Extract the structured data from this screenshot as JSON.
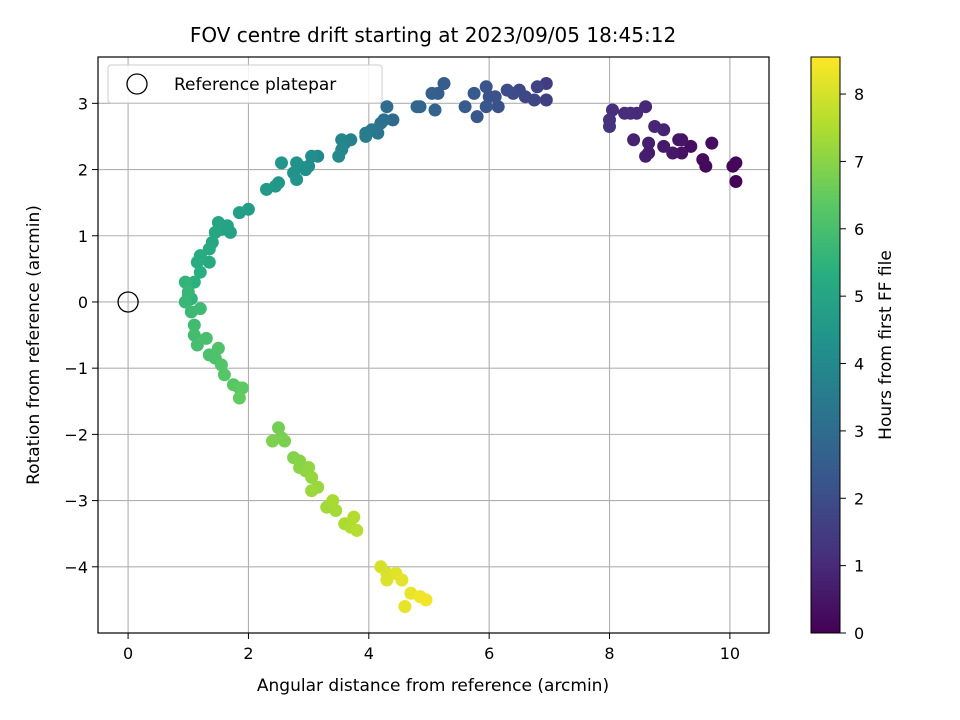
{
  "chart_data": {
    "type": "scatter",
    "title": "FOV centre drift starting at 2023/09/05 18:45:12",
    "xlabel": "Angular distance from reference (arcmin)",
    "ylabel": "Rotation from reference (arcmin)",
    "colorbar_label": "Hours from first FF file",
    "xlim": [
      -0.5,
      10.65
    ],
    "ylim": [
      -5.0,
      3.7
    ],
    "x_ticks": [
      0,
      2,
      4,
      6,
      8,
      10
    ],
    "y_ticks": [
      -4,
      -3,
      -2,
      -1,
      0,
      1,
      2,
      3
    ],
    "colorbar_range": [
      0,
      8.55
    ],
    "colorbar_ticks": [
      0,
      1,
      2,
      3,
      4,
      5,
      6,
      7,
      8
    ],
    "colormap": "viridis",
    "grid": true,
    "legend": {
      "placement": "top-left",
      "entries": [
        "Reference platepar"
      ]
    },
    "reference_point": {
      "x": 0,
      "y": 0
    },
    "points": [
      [
        10.1,
        1.82,
        0.05
      ],
      [
        10.05,
        2.05,
        0.1
      ],
      [
        10.1,
        2.1,
        0.15
      ],
      [
        9.6,
        2.05,
        0.2
      ],
      [
        9.55,
        2.15,
        0.25
      ],
      [
        9.7,
        2.4,
        0.3
      ],
      [
        9.35,
        2.35,
        0.35
      ],
      [
        9.2,
        2.25,
        0.4
      ],
      [
        9.15,
        2.45,
        0.45
      ],
      [
        9.2,
        2.45,
        0.5
      ],
      [
        9.05,
        2.25,
        0.55
      ],
      [
        8.9,
        2.35,
        0.6
      ],
      [
        8.65,
        2.25,
        0.65
      ],
      [
        8.6,
        2.2,
        0.7
      ],
      [
        8.65,
        2.4,
        0.75
      ],
      [
        8.4,
        2.45,
        0.8
      ],
      [
        8.9,
        2.6,
        0.85
      ],
      [
        8.75,
        2.65,
        0.9
      ],
      [
        8.6,
        2.95,
        0.95
      ],
      [
        8.45,
        2.85,
        1.0
      ],
      [
        8.35,
        2.85,
        1.05
      ],
      [
        8.25,
        2.85,
        1.1
      ],
      [
        8.05,
        2.9,
        1.15
      ],
      [
        8.0,
        2.75,
        1.2
      ],
      [
        8.0,
        2.65,
        1.25
      ],
      [
        6.95,
        3.3,
        1.5
      ],
      [
        6.95,
        3.05,
        1.6
      ],
      [
        6.8,
        3.25,
        1.7
      ],
      [
        6.75,
        3.05,
        1.75
      ],
      [
        6.6,
        3.1,
        1.8
      ],
      [
        6.5,
        3.2,
        1.85
      ],
      [
        6.4,
        3.15,
        1.95
      ],
      [
        6.3,
        3.2,
        2.0
      ],
      [
        6.15,
        2.95,
        2.1
      ],
      [
        6.1,
        3.1,
        2.15
      ],
      [
        6.0,
        3.1,
        2.2
      ],
      [
        5.95,
        3.25,
        2.25
      ],
      [
        5.95,
        2.95,
        2.3
      ],
      [
        5.8,
        2.8,
        2.35
      ],
      [
        5.75,
        3.15,
        2.4
      ],
      [
        5.6,
        2.95,
        2.45
      ],
      [
        5.25,
        3.3,
        2.5
      ],
      [
        5.15,
        3.15,
        2.55
      ],
      [
        5.05,
        3.15,
        2.6
      ],
      [
        5.1,
        2.9,
        2.7
      ],
      [
        4.85,
        2.95,
        2.75
      ],
      [
        4.8,
        2.95,
        2.8
      ],
      [
        4.4,
        2.75,
        2.9
      ],
      [
        4.3,
        2.95,
        3.0
      ],
      [
        4.25,
        2.75,
        3.1
      ],
      [
        4.2,
        2.7,
        3.2
      ],
      [
        4.15,
        2.55,
        3.3
      ],
      [
        4.05,
        2.6,
        3.4
      ],
      [
        3.95,
        2.55,
        3.5
      ],
      [
        3.95,
        2.5,
        3.6
      ],
      [
        3.7,
        2.45,
        3.7
      ],
      [
        3.6,
        2.4,
        3.8
      ],
      [
        3.55,
        2.45,
        3.85
      ],
      [
        3.55,
        2.3,
        3.9
      ],
      [
        3.5,
        2.2,
        4.0
      ],
      [
        3.15,
        2.2,
        4.05
      ],
      [
        3.0,
        2.05,
        4.1
      ],
      [
        3.05,
        2.2,
        4.15
      ],
      [
        2.95,
        2.0,
        4.2
      ],
      [
        2.85,
        2.05,
        4.25
      ],
      [
        2.8,
        2.1,
        4.3
      ],
      [
        2.75,
        1.95,
        4.35
      ],
      [
        2.8,
        1.85,
        4.4
      ],
      [
        2.55,
        2.1,
        4.45
      ],
      [
        2.5,
        1.8,
        4.5
      ],
      [
        2.45,
        1.75,
        4.55
      ],
      [
        2.3,
        1.7,
        4.6
      ],
      [
        2.0,
        1.4,
        4.7
      ],
      [
        1.85,
        1.35,
        4.75
      ],
      [
        1.55,
        1.1,
        4.85
      ],
      [
        1.7,
        1.05,
        4.9
      ],
      [
        1.65,
        1.15,
        4.95
      ],
      [
        1.5,
        1.2,
        5.0
      ],
      [
        1.45,
        1.05,
        5.05
      ],
      [
        1.4,
        0.9,
        5.1
      ],
      [
        1.35,
        0.8,
        5.15
      ],
      [
        1.35,
        0.6,
        5.2
      ],
      [
        1.2,
        0.7,
        5.25
      ],
      [
        1.15,
        0.6,
        5.3
      ],
      [
        1.2,
        0.45,
        5.35
      ],
      [
        1.1,
        0.3,
        5.4
      ],
      [
        1.05,
        0.05,
        5.5
      ],
      [
        1.0,
        0.1,
        5.55
      ],
      [
        0.95,
        0.3,
        5.6
      ],
      [
        1.0,
        0.15,
        5.65
      ],
      [
        0.95,
        0.0,
        5.7
      ],
      [
        1.05,
        -0.15,
        5.75
      ],
      [
        1.2,
        -0.1,
        5.8
      ],
      [
        1.1,
        -0.35,
        5.85
      ],
      [
        1.1,
        -0.5,
        5.9
      ],
      [
        1.15,
        -0.65,
        5.95
      ],
      [
        1.3,
        -0.55,
        6.0
      ],
      [
        1.35,
        -0.8,
        6.05
      ],
      [
        1.45,
        -0.85,
        6.1
      ],
      [
        1.5,
        -0.7,
        6.15
      ],
      [
        1.55,
        -0.95,
        6.2
      ],
      [
        1.6,
        -1.1,
        6.25
      ],
      [
        1.75,
        -1.25,
        6.3
      ],
      [
        1.85,
        -1.3,
        6.35
      ],
      [
        1.9,
        -1.3,
        6.4
      ],
      [
        1.85,
        -1.45,
        6.45
      ],
      [
        2.5,
        -1.9,
        6.7
      ],
      [
        2.55,
        -2.05,
        6.75
      ],
      [
        2.6,
        -2.1,
        6.8
      ],
      [
        2.4,
        -2.1,
        6.85
      ],
      [
        2.75,
        -2.35,
        6.9
      ],
      [
        2.85,
        -2.4,
        6.95
      ],
      [
        2.85,
        -2.5,
        7.0
      ],
      [
        2.95,
        -2.55,
        7.05
      ],
      [
        3.0,
        -2.5,
        7.1
      ],
      [
        3.05,
        -2.65,
        7.15
      ],
      [
        3.15,
        -2.8,
        7.2
      ],
      [
        3.05,
        -2.85,
        7.25
      ],
      [
        3.3,
        -3.1,
        7.3
      ],
      [
        3.45,
        -3.15,
        7.35
      ],
      [
        3.4,
        -3.0,
        7.4
      ],
      [
        3.6,
        -3.35,
        7.45
      ],
      [
        3.7,
        -3.4,
        7.5
      ],
      [
        3.75,
        -3.25,
        7.55
      ],
      [
        3.8,
        -3.45,
        7.6
      ],
      [
        4.2,
        -4.0,
        8.0
      ],
      [
        4.3,
        -4.1,
        8.05
      ],
      [
        4.3,
        -4.2,
        8.1
      ],
      [
        4.45,
        -4.1,
        8.15
      ],
      [
        4.55,
        -4.2,
        8.2
      ],
      [
        4.6,
        -4.6,
        8.25
      ],
      [
        4.7,
        -4.4,
        8.3
      ],
      [
        4.85,
        -4.45,
        8.35
      ],
      [
        4.95,
        -4.5,
        8.4
      ]
    ]
  }
}
